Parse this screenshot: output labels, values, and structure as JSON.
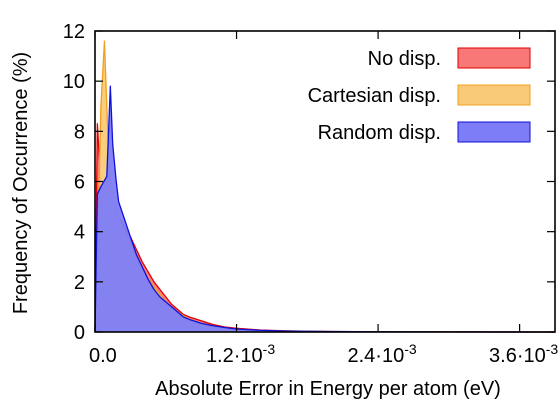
{
  "chart_data": {
    "type": "area",
    "xlabel": "Absolute Error in Energy per atom (eV)",
    "ylabel": "Frequency of Occurrence (%)",
    "xlim": [
      0,
      0.0039
    ],
    "ylim": [
      0,
      12
    ],
    "grid": false,
    "legend_position": "top-right",
    "x_ticks": [
      {
        "value": 0.0,
        "mantissa": "0.0",
        "exponent": ""
      },
      {
        "value": 0.0012,
        "mantissa": "1.2·10",
        "exponent": "-3"
      },
      {
        "value": 0.0024,
        "mantissa": "2.4·10",
        "exponent": "-3"
      },
      {
        "value": 0.0036,
        "mantissa": "3.6·10",
        "exponent": "-3"
      }
    ],
    "y_ticks": [
      {
        "value": 0,
        "label": "0"
      },
      {
        "value": 2,
        "label": "2"
      },
      {
        "value": 4,
        "label": "4"
      },
      {
        "value": 6,
        "label": "6"
      },
      {
        "value": 8,
        "label": "8"
      },
      {
        "value": 10,
        "label": "10"
      },
      {
        "value": 12,
        "label": "12"
      }
    ],
    "series": [
      {
        "name": "No disp.",
        "fill": "#f87878",
        "stroke": "#e00000",
        "x": [
          0.0,
          2e-05,
          5e-05,
          0.0001,
          0.00015,
          0.0002,
          0.00025,
          0.0003,
          0.00035,
          0.0004,
          0.00045,
          0.0005,
          0.00055,
          0.0006,
          0.00065,
          0.0007,
          0.00075,
          0.0008,
          0.0009,
          0.001,
          0.0011,
          0.0012,
          0.0014,
          0.0016,
          0.0018,
          0.002,
          0.0025,
          0.003,
          0.0035,
          0.0039
        ],
        "values": [
          0.0,
          8.3,
          5.9,
          5.6,
          5.0,
          4.6,
          4.2,
          3.8,
          3.3,
          2.8,
          2.4,
          2.0,
          1.7,
          1.4,
          1.1,
          0.9,
          0.7,
          0.6,
          0.45,
          0.3,
          0.2,
          0.15,
          0.08,
          0.05,
          0.03,
          0.02,
          0.01,
          0.005,
          0.0,
          0.0
        ]
      },
      {
        "name": "Cartesian disp.",
        "fill": "#f9cb78",
        "stroke": "#f0a020",
        "x": [
          0.0,
          2e-05,
          5e-05,
          8e-05,
          0.0001,
          0.00012,
          0.00015,
          0.0002,
          0.00025,
          0.0003,
          0.00035,
          0.0004,
          0.00045,
          0.0005,
          0.00055,
          0.0006,
          0.00065,
          0.0007,
          0.00075,
          0.0008,
          0.0009,
          0.001,
          0.0011,
          0.0012,
          0.0014,
          0.0016,
          0.002,
          0.0025,
          0.003,
          0.0039
        ],
        "values": [
          0.0,
          3.0,
          9.0,
          11.6,
          9.0,
          6.5,
          5.6,
          4.6,
          4.0,
          3.4,
          2.9,
          2.5,
          2.1,
          1.8,
          1.5,
          1.2,
          1.0,
          0.8,
          0.65,
          0.5,
          0.35,
          0.25,
          0.15,
          0.1,
          0.06,
          0.03,
          0.015,
          0.005,
          0.0,
          0.0
        ]
      },
      {
        "name": "Random disp.",
        "fill": "#7d7df7",
        "stroke": "#1010d8",
        "x": [
          0.0,
          2e-05,
          5e-05,
          0.0001,
          0.00013,
          0.00015,
          0.00018,
          0.0002,
          0.00025,
          0.0003,
          0.00035,
          0.0004,
          0.00045,
          0.0005,
          0.00055,
          0.0006,
          0.00065,
          0.0007,
          0.00075,
          0.0008,
          0.0009,
          0.001,
          0.0011,
          0.0012,
          0.0014,
          0.0016,
          0.002,
          0.0025,
          0.003,
          0.0039
        ],
        "values": [
          0.0,
          5.5,
          5.8,
          6.2,
          9.8,
          7.5,
          6.0,
          5.2,
          4.5,
          3.8,
          3.1,
          2.6,
          2.1,
          1.7,
          1.4,
          1.2,
          1.0,
          0.8,
          0.6,
          0.5,
          0.35,
          0.25,
          0.18,
          0.12,
          0.07,
          0.04,
          0.02,
          0.01,
          0.005,
          0.0
        ]
      }
    ]
  }
}
